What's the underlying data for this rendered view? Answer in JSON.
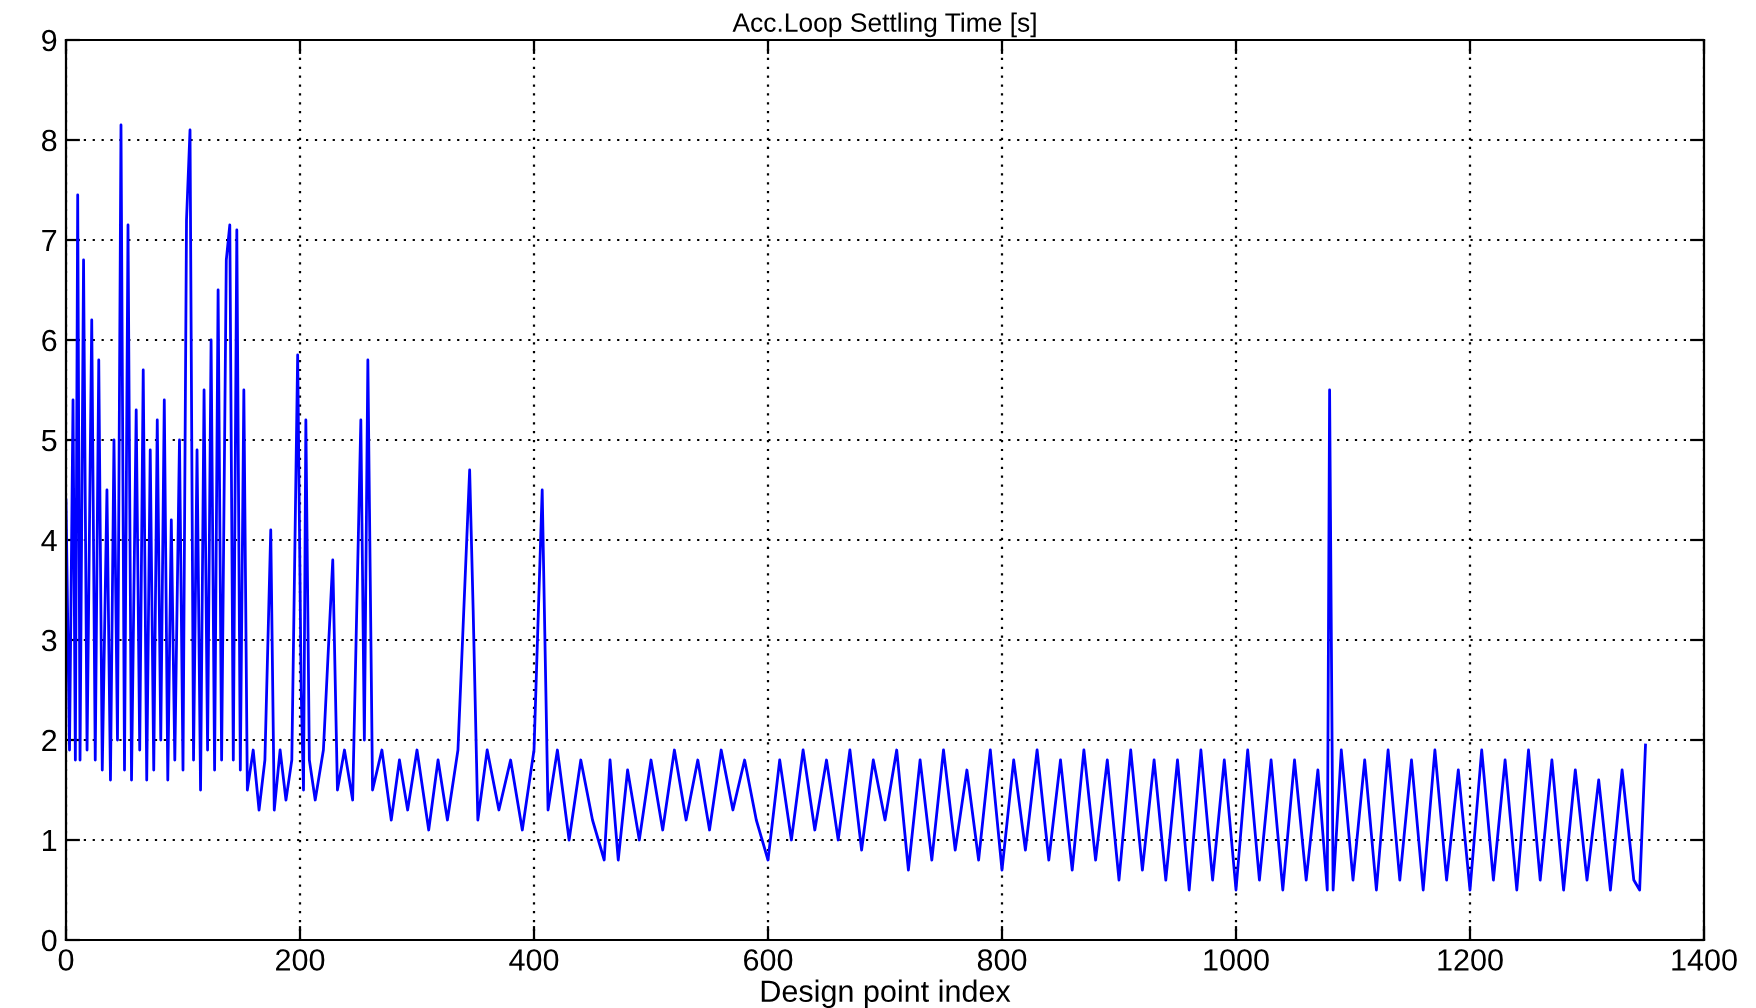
{
  "chart_data": {
    "type": "line",
    "title": "Acc.Loop Settling Time [s]",
    "xlabel": "Design point index",
    "xlim": [
      0,
      1400
    ],
    "xticks": [
      0,
      200,
      400,
      600,
      800,
      1000,
      1200,
      1400
    ],
    "ylim": [
      0,
      9
    ],
    "yticks": [
      0,
      1,
      2,
      3,
      4,
      5,
      6,
      7,
      8,
      9
    ],
    "grid": true,
    "marker": "none",
    "line_style": "solid",
    "series": [
      {
        "color": "#0000ff",
        "x": [
          0,
          3,
          6,
          8,
          10,
          12,
          15,
          18,
          22,
          25,
          28,
          31,
          35,
          38,
          41,
          44,
          47,
          50,
          53,
          56,
          60,
          63,
          66,
          69,
          72,
          75,
          78,
          81,
          84,
          87,
          90,
          93,
          97,
          100,
          103,
          106,
          109,
          112,
          115,
          118,
          121,
          124,
          127,
          130,
          133,
          137,
          140,
          143,
          146,
          149,
          152,
          155,
          160,
          165,
          170,
          175,
          178,
          183,
          188,
          193,
          198,
          201,
          203,
          205,
          208,
          213,
          220,
          228,
          232,
          238,
          245,
          252,
          255,
          258,
          262,
          270,
          278,
          285,
          292,
          300,
          310,
          318,
          326,
          335,
          345,
          348,
          352,
          360,
          370,
          380,
          390,
          400,
          407,
          412,
          420,
          430,
          440,
          450,
          460,
          465,
          472,
          480,
          490,
          500,
          510,
          520,
          530,
          540,
          550,
          560,
          570,
          580,
          590,
          600,
          610,
          620,
          630,
          640,
          650,
          660,
          670,
          680,
          690,
          700,
          710,
          720,
          730,
          740,
          750,
          760,
          770,
          780,
          790,
          800,
          810,
          820,
          830,
          840,
          850,
          860,
          870,
          880,
          890,
          900,
          910,
          920,
          930,
          940,
          950,
          960,
          970,
          980,
          990,
          1000,
          1010,
          1020,
          1030,
          1040,
          1050,
          1060,
          1070,
          1078,
          1080,
          1083,
          1090,
          1100,
          1110,
          1120,
          1130,
          1140,
          1150,
          1160,
          1170,
          1180,
          1190,
          1200,
          1210,
          1220,
          1230,
          1240,
          1250,
          1260,
          1270,
          1280,
          1290,
          1300,
          1310,
          1320,
          1330,
          1340,
          1345,
          1350
        ],
        "values": [
          4.4,
          1.9,
          5.4,
          1.8,
          7.45,
          1.8,
          6.8,
          1.9,
          6.2,
          1.8,
          5.8,
          1.7,
          4.5,
          1.6,
          5.0,
          2.0,
          8.15,
          1.7,
          7.15,
          1.6,
          5.3,
          1.9,
          5.7,
          1.6,
          4.9,
          1.7,
          5.2,
          2.0,
          5.4,
          1.6,
          4.2,
          1.8,
          5.0,
          1.7,
          7.2,
          8.1,
          1.8,
          4.9,
          1.5,
          5.5,
          1.9,
          6.0,
          1.7,
          6.5,
          1.8,
          6.8,
          7.15,
          1.8,
          7.1,
          1.7,
          5.5,
          1.5,
          1.9,
          1.3,
          1.8,
          4.1,
          1.3,
          1.9,
          1.4,
          1.8,
          5.85,
          2.5,
          1.5,
          5.2,
          1.8,
          1.4,
          1.9,
          3.8,
          1.5,
          1.9,
          1.4,
          5.2,
          2.0,
          5.8,
          1.5,
          1.9,
          1.2,
          1.8,
          1.3,
          1.9,
          1.1,
          1.8,
          1.2,
          1.9,
          4.7,
          3.3,
          1.2,
          1.9,
          1.3,
          1.8,
          1.1,
          1.9,
          4.5,
          1.3,
          1.9,
          1.0,
          1.8,
          1.2,
          0.8,
          1.8,
          0.8,
          1.7,
          1.0,
          1.8,
          1.1,
          1.9,
          1.2,
          1.8,
          1.1,
          1.9,
          1.3,
          1.8,
          1.2,
          0.8,
          1.8,
          1.0,
          1.9,
          1.1,
          1.8,
          1.0,
          1.9,
          0.9,
          1.8,
          1.2,
          1.9,
          0.7,
          1.8,
          0.8,
          1.9,
          0.9,
          1.7,
          0.8,
          1.9,
          0.7,
          1.8,
          0.9,
          1.9,
          0.8,
          1.8,
          0.7,
          1.9,
          0.8,
          1.8,
          0.6,
          1.9,
          0.7,
          1.8,
          0.6,
          1.8,
          0.5,
          1.9,
          0.6,
          1.8,
          0.5,
          1.9,
          0.6,
          1.8,
          0.5,
          1.8,
          0.6,
          1.7,
          0.5,
          5.5,
          0.5,
          1.9,
          0.6,
          1.8,
          0.5,
          1.9,
          0.6,
          1.8,
          0.5,
          1.9,
          0.6,
          1.7,
          0.5,
          1.9,
          0.6,
          1.8,
          0.5,
          1.9,
          0.6,
          1.8,
          0.5,
          1.7,
          0.6,
          1.6,
          0.5,
          1.7,
          0.6,
          0.5,
          1.95
        ]
      }
    ]
  }
}
